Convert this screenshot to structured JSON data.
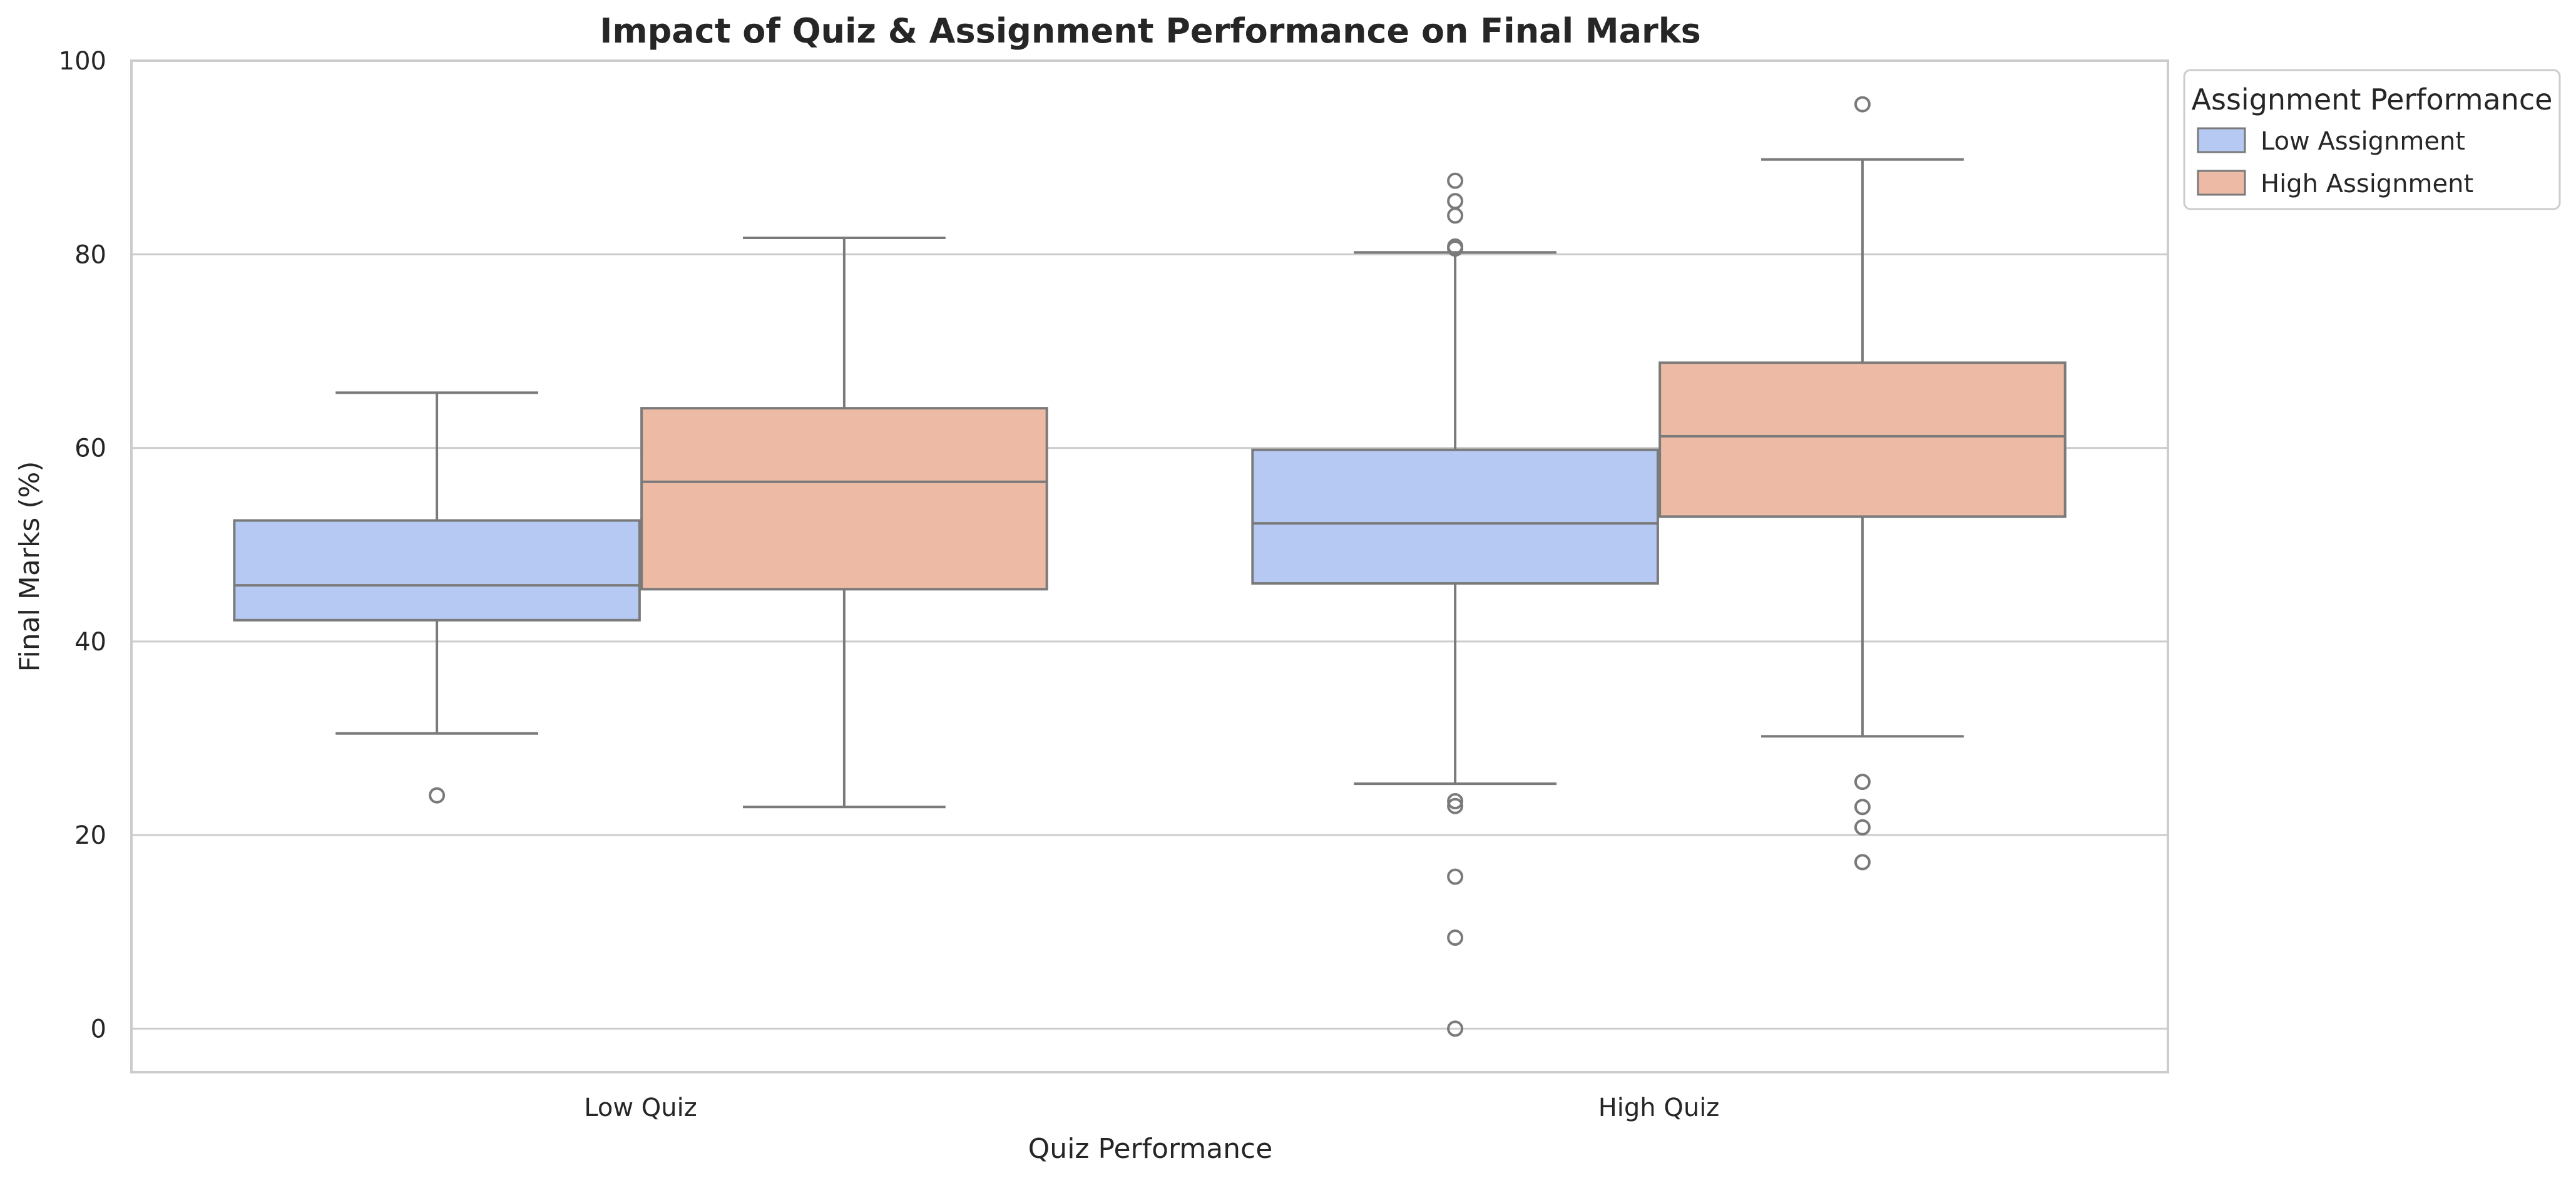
{
  "chart_data": {
    "type": "box",
    "title": "Impact of Quiz & Assignment Performance on Final Marks",
    "xlabel": "Quiz Performance",
    "ylabel": "Final Marks (%)",
    "ylim": [
      -4.5,
      100
    ],
    "yticks": [
      0,
      20,
      40,
      60,
      80,
      100
    ],
    "categories": [
      "Low Quiz",
      "High Quiz"
    ],
    "grid": "horizontal",
    "legend": {
      "title": "Assignment Performance",
      "placement": "outside-top-right"
    },
    "series": [
      {
        "name": "Low Assignment",
        "color": "#b5c9f3",
        "boxes": [
          {
            "category": "Low Quiz",
            "whisker_low": 30.5,
            "q1": 42.2,
            "median": 45.8,
            "q3": 52.5,
            "whisker_high": 65.7,
            "outliers": [
              24.1
            ]
          },
          {
            "category": "High Quiz",
            "whisker_low": 25.3,
            "q1": 46.0,
            "median": 52.2,
            "q3": 59.8,
            "whisker_high": 80.2,
            "outliers": [
              87.6,
              85.5,
              84.0,
              80.8,
              80.6,
              23.5,
              23.0,
              15.7,
              9.4,
              0.0
            ]
          }
        ]
      },
      {
        "name": "High Assignment",
        "color": "#edbba5",
        "boxes": [
          {
            "category": "Low Quiz",
            "whisker_low": 22.9,
            "q1": 45.4,
            "median": 56.5,
            "q3": 64.1,
            "whisker_high": 81.7,
            "outliers": []
          },
          {
            "category": "High Quiz",
            "whisker_low": 30.2,
            "q1": 52.9,
            "median": 61.2,
            "q3": 68.8,
            "whisker_high": 89.8,
            "outliers": [
              95.5,
              25.5,
              22.9,
              20.8,
              17.2
            ]
          }
        ]
      }
    ]
  }
}
